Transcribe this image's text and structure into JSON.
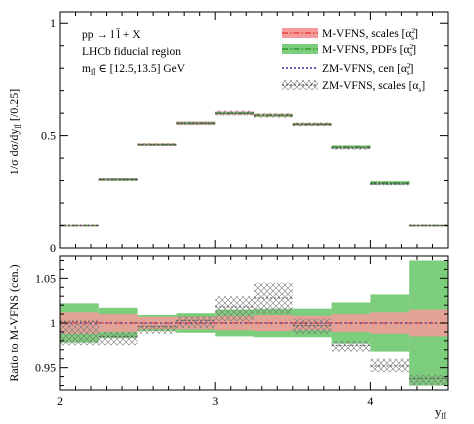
{
  "chart_data": [
    {
      "type": "step",
      "panel": "top",
      "ylabel": "1/σ dσ/dy",
      "ylabel_sub": "ll̄",
      "ylabel_tail": " [/0.25]",
      "ylim": [
        0,
        1.05
      ],
      "yticks": [
        0,
        0.5,
        1
      ],
      "ytick_labels": [
        "0",
        "0.5",
        "1"
      ],
      "annotations": [
        "pp → l l̄ + X",
        "LHCb fiducial region",
        "m",
        "ll̄",
        " ∈ [12.5,13.5] GeV"
      ],
      "bin_edges": [
        2.0,
        2.25,
        2.5,
        2.75,
        3.0,
        3.25,
        3.5,
        3.75,
        4.0,
        4.25,
        4.5
      ],
      "legend": [
        {
          "label": "M-VFNS, scales [α",
          "sup": "2",
          "sub": "s",
          "tail": "]",
          "color": "#e8413a",
          "line": "dashdot",
          "band_color": "#f49a9a"
        },
        {
          "label": "M-VFNS, PDFs [α",
          "sup": "2",
          "sub": "s",
          "tail": "]",
          "color": "#2e9a2e",
          "line": "dashdot",
          "band_color": "#7ccd7c"
        },
        {
          "label": "ZM-VFNS, cen [α",
          "sup": "2",
          "sub": "s",
          "tail": "]",
          "color": "#2b2b9f",
          "line": "dotted",
          "band_color": ""
        },
        {
          "label": "ZM-VFNS, scales [α",
          "sup": "",
          "sub": "s",
          "tail": "]",
          "color": "#555555",
          "line": "dotted",
          "band_color": "hatch"
        }
      ],
      "series": [
        {
          "name": "M-VFNS, scales",
          "values": [
            0.1,
            0.305,
            0.46,
            0.555,
            0.6,
            0.59,
            0.55,
            0.45,
            0.29,
            0.1
          ],
          "err": [
            0.004,
            0.006,
            0.006,
            0.008,
            0.008,
            0.008,
            0.007,
            0.006,
            0.006,
            0.004
          ]
        },
        {
          "name": "M-VFNS, PDFs",
          "values": [
            0.1,
            0.305,
            0.46,
            0.555,
            0.6,
            0.59,
            0.55,
            0.45,
            0.29,
            0.1
          ],
          "err": [
            0.002,
            0.005,
            0.004,
            0.005,
            0.005,
            0.005,
            0.005,
            0.007,
            0.008,
            0.003
          ]
        },
        {
          "name": "ZM-VFNS, cen",
          "values": [
            0.1,
            0.305,
            0.46,
            0.555,
            0.6,
            0.59,
            0.55,
            0.445,
            0.285,
            0.1
          ]
        },
        {
          "name": "ZM-VFNS, scales",
          "values": [
            0.1,
            0.305,
            0.46,
            0.555,
            0.6,
            0.59,
            0.55,
            0.445,
            0.285,
            0.1
          ],
          "err": [
            0.003,
            0.006,
            0.006,
            0.008,
            0.012,
            0.01,
            0.008,
            0.008,
            0.006,
            0.003
          ]
        }
      ]
    },
    {
      "type": "ratio",
      "panel": "bottom",
      "ylabel": "Ratio to M-VFNS (cen.)",
      "xlabel": "y",
      "xlabel_sub": "ll̄",
      "xlim": [
        2.0,
        4.5
      ],
      "ylim": [
        0.925,
        1.075
      ],
      "yticks": [
        0.95,
        1.0,
        1.05
      ],
      "ytick_labels": [
        "0.95",
        "1",
        "1.05"
      ],
      "xticks": [
        2,
        3,
        4
      ],
      "xtick_labels": [
        "2",
        "3",
        "4"
      ],
      "bin_edges": [
        2.0,
        2.25,
        2.5,
        2.75,
        3.0,
        3.25,
        3.5,
        3.75,
        4.0,
        4.25,
        4.5
      ],
      "series": [
        {
          "name": "M-VFNS, PDFs",
          "low": [
            0.978,
            0.983,
            0.991,
            0.989,
            0.985,
            0.984,
            0.984,
            0.977,
            0.968,
            0.93
          ],
          "high": [
            1.022,
            1.017,
            1.009,
            1.011,
            1.015,
            1.016,
            1.016,
            1.023,
            1.032,
            1.07
          ]
        },
        {
          "name": "M-VFNS, scales",
          "low": [
            0.988,
            0.99,
            0.993,
            0.993,
            0.992,
            0.991,
            0.992,
            0.99,
            0.988,
            0.985
          ],
          "high": [
            1.012,
            1.01,
            1.007,
            1.007,
            1.008,
            1.009,
            1.008,
            1.01,
            1.012,
            1.015
          ]
        },
        {
          "name": "ZM-VFNS, scales",
          "low": [
            0.975,
            0.975,
            0.988,
            0.994,
            1.002,
            1.01,
            0.988,
            0.968,
            0.945,
            0.93
          ],
          "high": [
            1.0,
            0.99,
            0.998,
            1.008,
            1.03,
            1.045,
            1.005,
            0.98,
            0.96,
            0.942
          ]
        },
        {
          "name": "ZM-VFNS, cen",
          "values": [
            1.002,
            0.985,
            0.996,
            1.003,
            1.018,
            1.028,
            0.997,
            0.975,
            0.952,
            0.938
          ]
        }
      ]
    }
  ]
}
